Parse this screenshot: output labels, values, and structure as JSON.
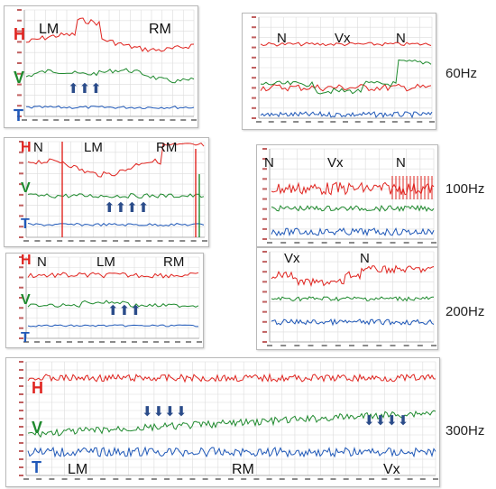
{
  "colors": {
    "h": "#e0241f",
    "v": "#1f8a2e",
    "t": "#1f58b8",
    "arrow": "#2b4c8a",
    "grid": "#dcdcdc"
  },
  "panels": {
    "p60l": {
      "markers": [
        "LM",
        "RM"
      ],
      "channels": [
        "H",
        "V",
        "T"
      ],
      "arrows": "⬆⬆⬆"
    },
    "p60r": {
      "markers": [
        "N",
        "Vx",
        "N"
      ]
    },
    "p100l": {
      "markers": [
        "N",
        "LM",
        "RM"
      ],
      "channels": [
        "H",
        "V",
        "T"
      ],
      "arrows": "⬆⬆⬆⬆"
    },
    "p100r": {
      "markers": [
        "N",
        "Vx",
        "N"
      ]
    },
    "p200l": {
      "markers": [
        "N",
        "LM",
        "RM"
      ],
      "channels": [
        "H",
        "V",
        "T"
      ],
      "arrows": "⬆⬆⬆"
    },
    "p200r": {
      "markers": [
        "Vx",
        "N"
      ]
    },
    "p300": {
      "markers": [
        "LM",
        "RM",
        "Vx"
      ],
      "channels": [
        "H",
        "V",
        "T"
      ],
      "arrows_left": "⬇⬇⬇⬇",
      "arrows_right": "⬇⬇⬇⬇"
    }
  },
  "frequencies": [
    "60Hz",
    "100Hz",
    "200Hz",
    "300Hz"
  ]
}
